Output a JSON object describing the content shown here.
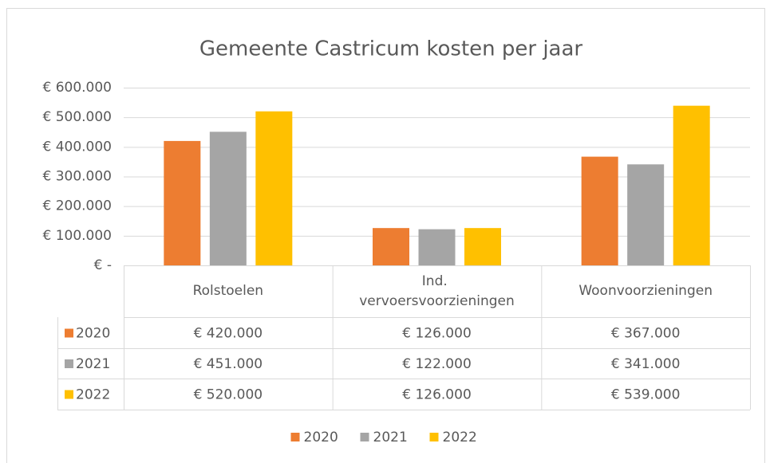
{
  "chart_data": {
    "type": "bar",
    "title": "Gemeente Castricum kosten per jaar",
    "categories": [
      "Rolstoelen",
      "Ind. vervoersvoorzieningen",
      "Woonvoorzieningen"
    ],
    "series": [
      {
        "name": "2020",
        "color": "#ED7D31",
        "values": [
          420000,
          126000,
          367000
        ],
        "value_labels": [
          "€ 420.000",
          "€ 126.000",
          "€ 367.000"
        ]
      },
      {
        "name": "2021",
        "color": "#A5A5A5",
        "values": [
          451000,
          122000,
          341000
        ],
        "value_labels": [
          "€ 451.000",
          "€ 122.000",
          "€ 341.000"
        ]
      },
      {
        "name": "2022",
        "color": "#FFC000",
        "values": [
          520000,
          126000,
          539000
        ],
        "value_labels": [
          "€ 520.000",
          "€ 126.000",
          "€ 539.000"
        ]
      }
    ],
    "ylim": [
      0,
      600000
    ],
    "yticks": [
      {
        "value": 0,
        "label": "€ -"
      },
      {
        "value": 100000,
        "label": "€ 100.000"
      },
      {
        "value": 200000,
        "label": "€ 200.000"
      },
      {
        "value": 300000,
        "label": "€ 300.000"
      },
      {
        "value": 400000,
        "label": "€ 400.000"
      },
      {
        "value": 500000,
        "label": "€ 500.000"
      },
      {
        "value": 600000,
        "label": "€ 600.000"
      }
    ],
    "grid": true,
    "legend": "bottom"
  }
}
